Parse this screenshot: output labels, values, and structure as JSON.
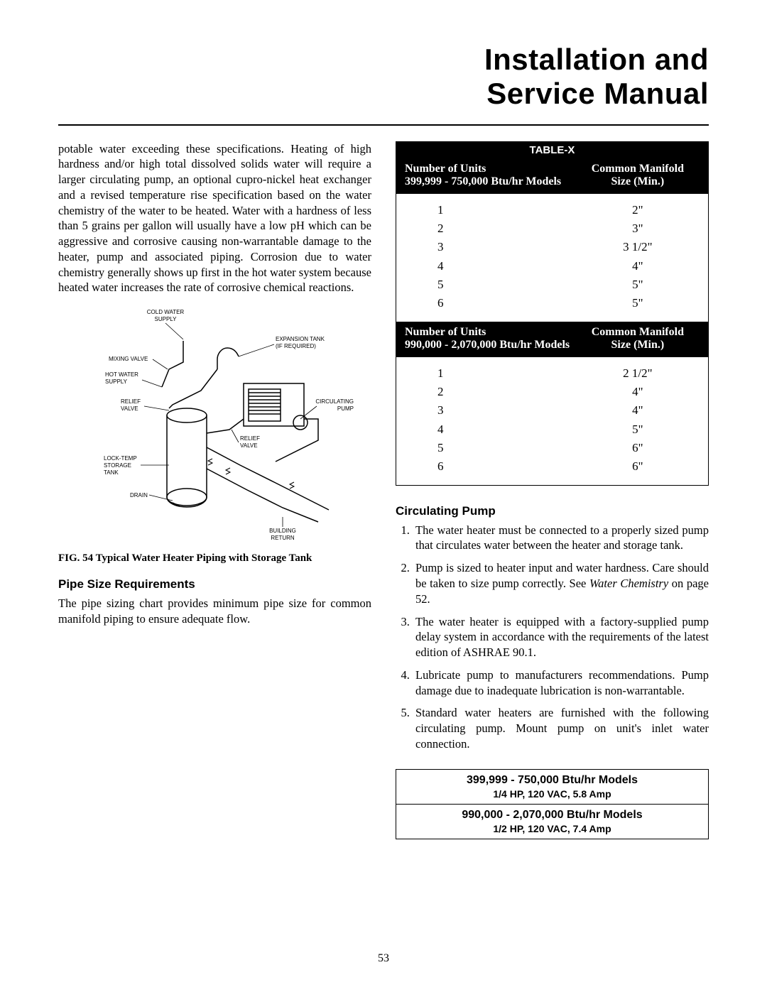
{
  "title_line1": "Installation and",
  "title_line2": "Service Manual",
  "page_number": "53",
  "left": {
    "para1": "potable water exceeding these specifications. Heating of high hardness and/or high total dissolved solids water will require a larger circulating pump, an optional cupro-nickel heat exchanger and a revised temperature rise specification based on the water chemistry of the water to be heated. Water with a hardness of less than 5 grains per gallon will usually have a low pH which can be aggressive and corrosive causing non-warrantable damage to the heater, pump and associated piping. Corrosion due to water chemistry generally shows up first in the hot water system because heated water increases the rate of corrosive chemical reactions.",
    "figure_labels": {
      "cold_water_supply": "COLD WATER\nSUPPLY",
      "expansion_tank": "EXPANSION TANK\n(IF REQUIRED)",
      "mixing_valve": "MIXING VALVE",
      "hot_water_supply": "HOT WATER\nSUPPLY",
      "relief_valve": "RELIEF\nVALVE",
      "relief_valve2": "RELIEF\nVALVE",
      "circulating_pump": "CIRCULATING\nPUMP",
      "lock_temp_tank": "LOCK-TEMP\nSTORAGE\nTANK",
      "drain": "DRAIN",
      "building_return": "BUILDING\nRETURN"
    },
    "figure_caption": "FIG. 54   Typical Water Heater Piping with Storage Tank",
    "pipe_head": "Pipe Size Requirements",
    "pipe_para": "The pipe sizing chart provides minimum pipe size for common manifold piping to ensure adequate flow."
  },
  "right": {
    "table_title": "TABLE-X",
    "section1": {
      "head_left_l1": "Number of Units",
      "head_left_l2": "399,999 - 750,000 Btu/hr Models",
      "head_right_l1": "Common Manifold",
      "head_right_l2": "Size (Min.)",
      "rows": [
        {
          "units": "1",
          "size": "2\""
        },
        {
          "units": "2",
          "size": "3\""
        },
        {
          "units": "3",
          "size": "3 1/2\""
        },
        {
          "units": "4",
          "size": "4\""
        },
        {
          "units": "5",
          "size": "5\""
        },
        {
          "units": "6",
          "size": "5\""
        }
      ]
    },
    "section2": {
      "head_left_l1": "Number of Units",
      "head_left_l2": "990,000 - 2,070,000 Btu/hr Models",
      "head_right_l1": "Common Manifold",
      "head_right_l2": "Size (Min.)",
      "rows": [
        {
          "units": "1",
          "size": "2 1/2\""
        },
        {
          "units": "2",
          "size": "4\""
        },
        {
          "units": "3",
          "size": "4\""
        },
        {
          "units": "4",
          "size": "5\""
        },
        {
          "units": "5",
          "size": "6\""
        },
        {
          "units": "6",
          "size": "6\""
        }
      ]
    },
    "pump_head": "Circulating Pump",
    "pump_items": [
      "The water heater must be connected to a properly sized pump that circulates water between the heater and storage tank.",
      "Pump is sized to heater input and water hardness. Care should be taken to size pump correctly. See <span class=\"italic\">Water Chemistry</span> on page 52.",
      "The water heater is equipped with a factory-supplied pump delay system in accordance with the requirements of the latest edition of ASHRAE 90.1.",
      "Lubricate pump to manufacturers recommendations. Pump damage due to inadequate lubrication is non-warrantable.",
      "Standard water heaters are furnished with the following circulating pump. Mount pump on unit's inlet water connection."
    ],
    "spec_boxes": [
      {
        "line1": "399,999 - 750,000 Btu/hr Models",
        "line2": "1/4 HP, 120 VAC, 5.8 Amp"
      },
      {
        "line1": "990,000 - 2,070,000 Btu/hr Models",
        "line2": "1/2 HP, 120 VAC, 7.4 Amp"
      }
    ]
  }
}
